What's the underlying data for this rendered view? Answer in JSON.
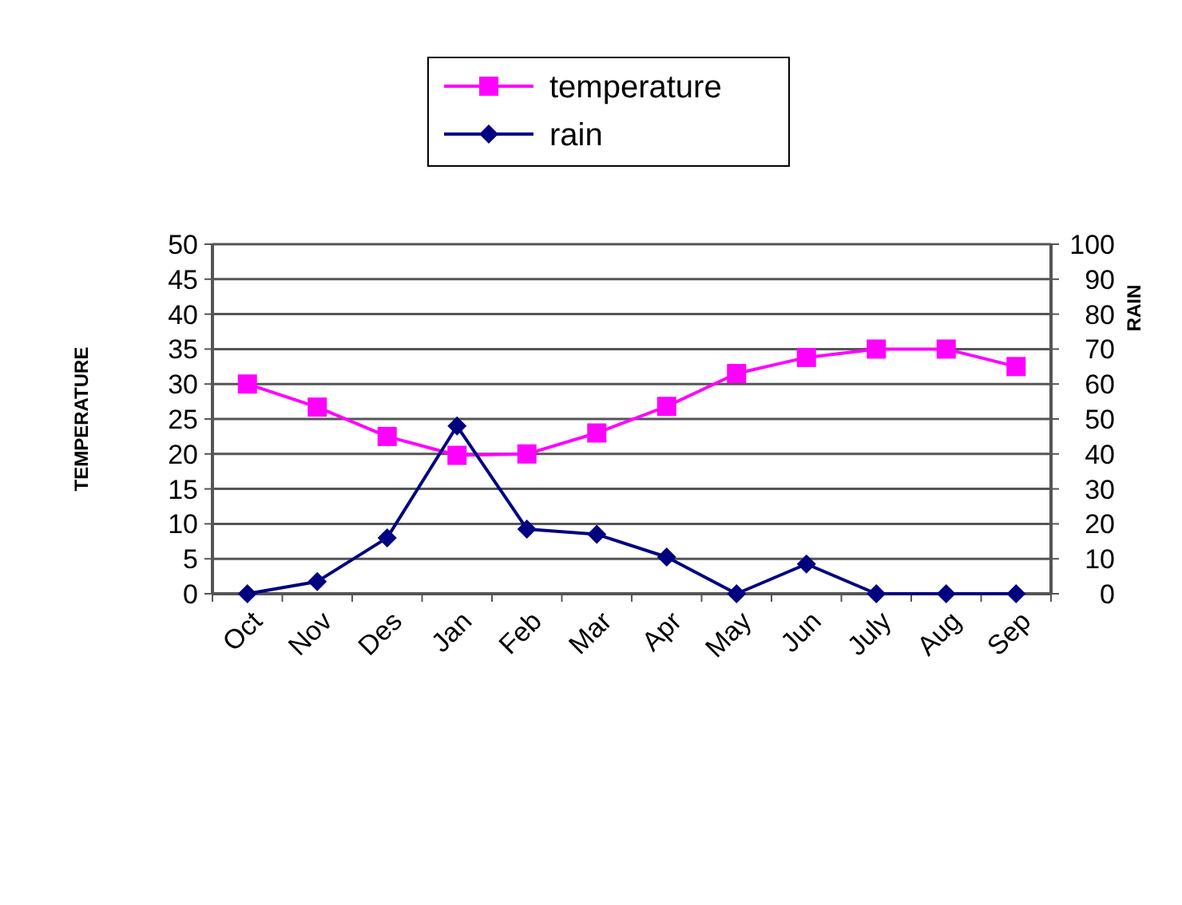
{
  "chart_data": {
    "type": "line",
    "categories": [
      "Oct",
      "Nov",
      "Des",
      "Jan",
      "Feb",
      "Mar",
      "Apr",
      "May",
      "Jun",
      "July",
      "Aug",
      "Sep"
    ],
    "series": [
      {
        "name": "temperature",
        "color": "#ff00ff",
        "marker": "square",
        "values": [
          30,
          26.7,
          22.5,
          19.8,
          20,
          23,
          26.8,
          31.5,
          33.8,
          35,
          35,
          32.5
        ]
      },
      {
        "name": "rain",
        "color": "#000080",
        "marker": "diamond",
        "axis": "y2",
        "values": [
          0,
          3.5,
          16,
          48,
          18.5,
          17,
          10.5,
          0,
          8.5,
          0,
          0,
          0
        ]
      }
    ],
    "ylabel": "TEMPERATURE",
    "y2label": "RAIN",
    "ylim": [
      0,
      50
    ],
    "yticks": [
      0,
      5,
      10,
      15,
      20,
      25,
      30,
      35,
      40,
      45,
      50
    ],
    "y2lim": [
      0,
      100
    ],
    "y2ticks": [
      0,
      10,
      20,
      30,
      40,
      50,
      60,
      70,
      80,
      90,
      100
    ],
    "grid": "y",
    "legend": "top"
  }
}
